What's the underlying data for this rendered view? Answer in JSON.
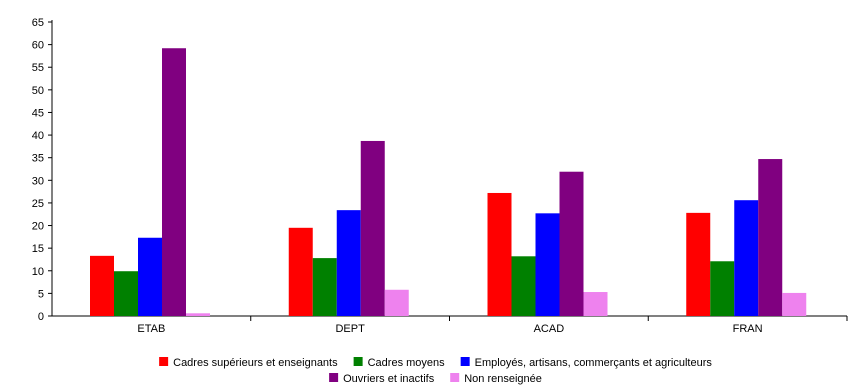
{
  "chart_data": {
    "type": "bar",
    "categories": [
      "ETAB",
      "DEPT",
      "ACAD",
      "FRAN"
    ],
    "series": [
      {
        "name": "Cadres supérieurs et enseignants",
        "color": "#ff0000",
        "values": [
          13.3,
          19.5,
          27.2,
          22.8
        ]
      },
      {
        "name": "Cadres moyens",
        "color": "#008000",
        "values": [
          9.9,
          12.8,
          13.2,
          12.1
        ]
      },
      {
        "name": "Employés, artisans, commerçants et agriculteurs",
        "color": "#0000ff",
        "values": [
          17.3,
          23.4,
          22.7,
          25.6
        ]
      },
      {
        "name": "Ouvriers et inactifs",
        "color": "#800080",
        "values": [
          59.2,
          38.7,
          31.9,
          34.7
        ]
      },
      {
        "name": "Non renseignée",
        "color": "#ee82ee",
        "values": [
          0.6,
          5.8,
          5.3,
          5.1
        ]
      }
    ],
    "yticks": [
      0,
      5,
      10,
      15,
      20,
      25,
      30,
      35,
      40,
      45,
      50,
      55,
      60,
      65
    ],
    "ylim": [
      0,
      65
    ],
    "grid": false,
    "legend_position": "bottom"
  }
}
